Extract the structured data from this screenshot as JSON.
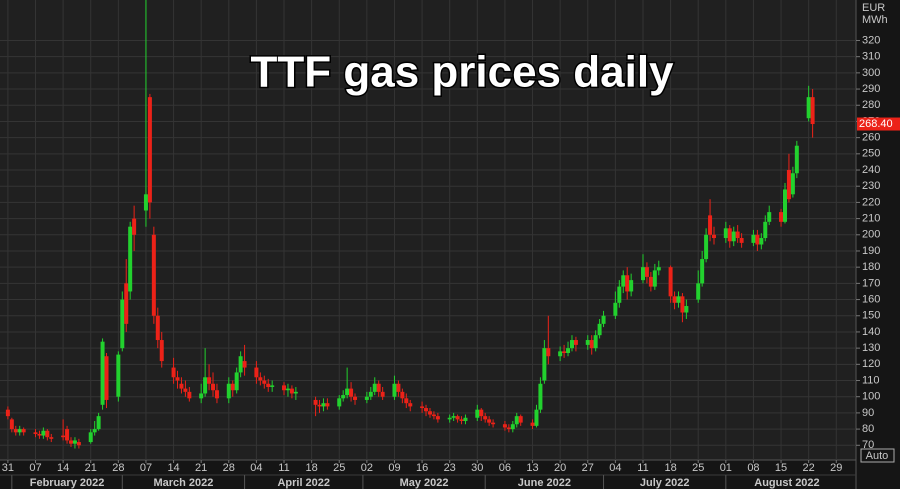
{
  "chart_data": {
    "type": "candlestick",
    "title": "TTF gas prices daily",
    "unit_label": [
      "EUR",
      "MWh"
    ],
    "scale_mode": "Auto",
    "last_value_label": "268.40",
    "up_color": "#22d12e",
    "down_color": "#ec2218",
    "grid": true,
    "ylim": [
      64,
      345
    ],
    "yticks": [
      70,
      80,
      90,
      100,
      110,
      120,
      130,
      140,
      150,
      160,
      170,
      180,
      190,
      200,
      210,
      220,
      230,
      240,
      250,
      260,
      270,
      280,
      290,
      300,
      310,
      320
    ],
    "xlim": [
      "2022-01-29",
      "2022-09-03"
    ],
    "xticks": [
      {
        "value": "2022-01-31",
        "label": "31"
      },
      {
        "value": "2022-02-07",
        "label": "07"
      },
      {
        "value": "2022-02-14",
        "label": "14"
      },
      {
        "value": "2022-02-21",
        "label": "21"
      },
      {
        "value": "2022-02-28",
        "label": "28"
      },
      {
        "value": "2022-03-07",
        "label": "07"
      },
      {
        "value": "2022-03-14",
        "label": "14"
      },
      {
        "value": "2022-03-21",
        "label": "21"
      },
      {
        "value": "2022-03-28",
        "label": "28"
      },
      {
        "value": "2022-04-04",
        "label": "04"
      },
      {
        "value": "2022-04-11",
        "label": "11"
      },
      {
        "value": "2022-04-18",
        "label": "18"
      },
      {
        "value": "2022-04-25",
        "label": "25"
      },
      {
        "value": "2022-05-02",
        "label": "02"
      },
      {
        "value": "2022-05-09",
        "label": "09"
      },
      {
        "value": "2022-05-16",
        "label": "16"
      },
      {
        "value": "2022-05-23",
        "label": "23"
      },
      {
        "value": "2022-05-30",
        "label": "30"
      },
      {
        "value": "2022-06-06",
        "label": "06"
      },
      {
        "value": "2022-06-13",
        "label": "13"
      },
      {
        "value": "2022-06-20",
        "label": "20"
      },
      {
        "value": "2022-06-27",
        "label": "27"
      },
      {
        "value": "2022-07-04",
        "label": "04"
      },
      {
        "value": "2022-07-11",
        "label": "11"
      },
      {
        "value": "2022-07-18",
        "label": "18"
      },
      {
        "value": "2022-07-25",
        "label": "25"
      },
      {
        "value": "2022-08-01",
        "label": "01"
      },
      {
        "value": "2022-08-08",
        "label": "08"
      },
      {
        "value": "2022-08-15",
        "label": "15"
      },
      {
        "value": "2022-08-22",
        "label": "22"
      },
      {
        "value": "2022-08-29",
        "label": "29"
      }
    ],
    "months": [
      {
        "value": "2022-02",
        "label": "February 2022"
      },
      {
        "value": "2022-03",
        "label": "March 2022"
      },
      {
        "value": "2022-04",
        "label": "April 2022"
      },
      {
        "value": "2022-05",
        "label": "May 2022"
      },
      {
        "value": "2022-06",
        "label": "June 2022"
      },
      {
        "value": "2022-07",
        "label": "July 2022"
      },
      {
        "value": "2022-08",
        "label": "August 2022"
      }
    ],
    "dates": [
      "2022-01-31",
      "2022-02-01",
      "2022-02-02",
      "2022-02-03",
      "2022-02-04",
      "2022-02-07",
      "2022-02-08",
      "2022-02-09",
      "2022-02-10",
      "2022-02-11",
      "2022-02-14",
      "2022-02-15",
      "2022-02-16",
      "2022-02-17",
      "2022-02-18",
      "2022-02-21",
      "2022-02-22",
      "2022-02-23",
      "2022-02-24",
      "2022-02-25",
      "2022-02-28",
      "2022-03-01",
      "2022-03-02",
      "2022-03-03",
      "2022-03-04",
      "2022-03-07",
      "2022-03-08",
      "2022-03-09",
      "2022-03-10",
      "2022-03-11",
      "2022-03-14",
      "2022-03-15",
      "2022-03-16",
      "2022-03-17",
      "2022-03-18",
      "2022-03-21",
      "2022-03-22",
      "2022-03-23",
      "2022-03-24",
      "2022-03-25",
      "2022-03-28",
      "2022-03-29",
      "2022-03-30",
      "2022-03-31",
      "2022-04-01",
      "2022-04-04",
      "2022-04-05",
      "2022-04-06",
      "2022-04-07",
      "2022-04-08",
      "2022-04-11",
      "2022-04-12",
      "2022-04-13",
      "2022-04-14",
      "2022-04-19",
      "2022-04-20",
      "2022-04-21",
      "2022-04-22",
      "2022-04-25",
      "2022-04-26",
      "2022-04-27",
      "2022-04-28",
      "2022-04-29",
      "2022-05-02",
      "2022-05-03",
      "2022-05-04",
      "2022-05-05",
      "2022-05-06",
      "2022-05-09",
      "2022-05-10",
      "2022-05-11",
      "2022-05-12",
      "2022-05-13",
      "2022-05-16",
      "2022-05-17",
      "2022-05-18",
      "2022-05-19",
      "2022-05-20",
      "2022-05-23",
      "2022-05-24",
      "2022-05-25",
      "2022-05-26",
      "2022-05-27",
      "2022-05-30",
      "2022-05-31",
      "2022-06-01",
      "2022-06-02",
      "2022-06-03",
      "2022-06-06",
      "2022-06-07",
      "2022-06-08",
      "2022-06-09",
      "2022-06-10",
      "2022-06-13",
      "2022-06-14",
      "2022-06-15",
      "2022-06-16",
      "2022-06-17",
      "2022-06-20",
      "2022-06-21",
      "2022-06-22",
      "2022-06-23",
      "2022-06-24",
      "2022-06-27",
      "2022-06-28",
      "2022-06-29",
      "2022-06-30",
      "2022-07-01",
      "2022-07-04",
      "2022-07-05",
      "2022-07-06",
      "2022-07-07",
      "2022-07-08",
      "2022-07-11",
      "2022-07-12",
      "2022-07-13",
      "2022-07-14",
      "2022-07-15",
      "2022-07-18",
      "2022-07-19",
      "2022-07-20",
      "2022-07-21",
      "2022-07-22",
      "2022-07-25",
      "2022-07-26",
      "2022-07-27",
      "2022-07-28",
      "2022-07-29",
      "2022-08-01",
      "2022-08-02",
      "2022-08-03",
      "2022-08-04",
      "2022-08-05",
      "2022-08-08",
      "2022-08-09",
      "2022-08-10",
      "2022-08-11",
      "2022-08-12",
      "2022-08-15",
      "2022-08-16",
      "2022-08-17",
      "2022-08-18",
      "2022-08-19",
      "2022-08-22",
      "2022-08-23"
    ],
    "open": [
      92,
      86,
      80,
      78,
      80,
      78,
      77,
      76,
      79,
      75,
      76,
      80,
      73,
      71,
      72,
      72,
      78,
      80,
      95,
      125,
      100,
      130,
      170,
      165,
      210,
      215,
      285,
      200,
      150,
      135,
      118,
      112,
      108,
      105,
      103,
      99,
      102,
      112,
      108,
      104,
      99,
      108,
      104,
      115,
      122,
      118,
      112,
      110,
      108,
      106,
      107,
      104,
      105,
      102,
      98,
      95,
      94,
      96,
      94,
      99,
      101,
      105,
      100,
      98,
      100,
      103,
      108,
      103,
      100,
      108,
      103,
      99,
      96,
      94,
      93,
      91,
      89,
      88,
      86,
      87,
      88,
      86,
      85,
      87,
      92,
      88,
      86,
      84,
      83,
      81,
      80,
      83,
      88,
      84,
      82,
      92,
      110,
      130,
      125,
      128,
      127,
      130,
      135,
      132,
      135,
      130,
      138,
      145,
      150,
      158,
      168,
      175,
      165,
      172,
      180,
      174,
      168,
      178,
      180,
      162,
      158,
      162,
      152,
      160,
      170,
      185,
      212,
      200,
      198,
      204,
      196,
      202,
      198,
      195,
      200,
      194,
      198,
      208,
      214,
      208,
      240,
      225,
      238,
      272,
      285
    ],
    "high": [
      94,
      87,
      82,
      82,
      81,
      80,
      79,
      81,
      80,
      77,
      86,
      82,
      75,
      75,
      74,
      80,
      85,
      90,
      136,
      127,
      128,
      165,
      185,
      208,
      218,
      345,
      287,
      205,
      155,
      140,
      124,
      116,
      112,
      110,
      106,
      108,
      130,
      120,
      115,
      108,
      112,
      110,
      118,
      128,
      132,
      122,
      115,
      113,
      111,
      110,
      109,
      108,
      107,
      106,
      100,
      98,
      99,
      99,
      101,
      104,
      118,
      109,
      102,
      103,
      106,
      112,
      110,
      106,
      113,
      110,
      105,
      102,
      98,
      97,
      95,
      93,
      91,
      90,
      89,
      90,
      89,
      88,
      89,
      95,
      93,
      90,
      88,
      86,
      85,
      83,
      85,
      90,
      89,
      86,
      95,
      112,
      135,
      150,
      131,
      132,
      134,
      138,
      137,
      138,
      138,
      141,
      148,
      153,
      165,
      172,
      178,
      180,
      176,
      188,
      183,
      177,
      182,
      184,
      181,
      165,
      165,
      164,
      160,
      178,
      190,
      204,
      222,
      205,
      208,
      206,
      205,
      206,
      201,
      203,
      203,
      201,
      212,
      218,
      216,
      232,
      250,
      242,
      258,
      292,
      290
    ],
    "low": [
      86,
      78,
      76,
      76,
      76,
      75,
      74,
      74,
      73,
      72,
      73,
      71,
      69,
      68,
      68,
      71,
      76,
      79,
      92,
      93,
      97,
      128,
      140,
      160,
      190,
      205,
      210,
      145,
      130,
      118,
      108,
      105,
      102,
      100,
      97,
      96,
      100,
      104,
      100,
      96,
      96,
      100,
      102,
      112,
      113,
      108,
      107,
      105,
      103,
      103,
      101,
      100,
      99,
      98,
      88,
      90,
      91,
      92,
      92,
      97,
      99,
      97,
      95,
      96,
      98,
      101,
      100,
      98,
      98,
      100,
      96,
      93,
      91,
      90,
      88,
      87,
      86,
      84,
      84,
      85,
      84,
      83,
      83,
      85,
      85,
      84,
      82,
      81,
      79,
      78,
      78,
      81,
      82,
      80,
      81,
      90,
      108,
      120,
      122,
      124,
      125,
      128,
      128,
      129,
      126,
      128,
      136,
      143,
      148,
      155,
      164,
      160,
      162,
      170,
      170,
      165,
      166,
      175,
      158,
      154,
      155,
      146,
      148,
      158,
      168,
      183,
      196,
      194,
      195,
      192,
      193,
      195,
      192,
      193,
      190,
      191,
      196,
      206,
      205,
      207,
      220,
      223,
      235,
      270,
      260
    ],
    "close": [
      88,
      80,
      78,
      80,
      78,
      77,
      76,
      79,
      75,
      74,
      75,
      73,
      71,
      73,
      70,
      78,
      80,
      88,
      134,
      98,
      126,
      160,
      145,
      205,
      200,
      225,
      220,
      150,
      135,
      122,
      112,
      110,
      105,
      103,
      99,
      102,
      112,
      108,
      104,
      99,
      108,
      104,
      115,
      125,
      118,
      112,
      110,
      108,
      106,
      107,
      104,
      105,
      102,
      103,
      95,
      94,
      96,
      94,
      99,
      101,
      105,
      100,
      98,
      100,
      103,
      108,
      103,
      100,
      108,
      103,
      99,
      96,
      94,
      93,
      91,
      89,
      88,
      86,
      87,
      88,
      86,
      85,
      87,
      92,
      88,
      86,
      84,
      83,
      81,
      80,
      83,
      88,
      84,
      82,
      92,
      108,
      130,
      125,
      128,
      127,
      130,
      135,
      132,
      135,
      130,
      138,
      145,
      150,
      158,
      168,
      175,
      165,
      172,
      180,
      174,
      168,
      178,
      180,
      162,
      158,
      162,
      152,
      156,
      170,
      185,
      200,
      200,
      198,
      204,
      196,
      202,
      198,
      195,
      200,
      194,
      198,
      208,
      214,
      208,
      228,
      222,
      238,
      255,
      285,
      268.4
    ]
  }
}
